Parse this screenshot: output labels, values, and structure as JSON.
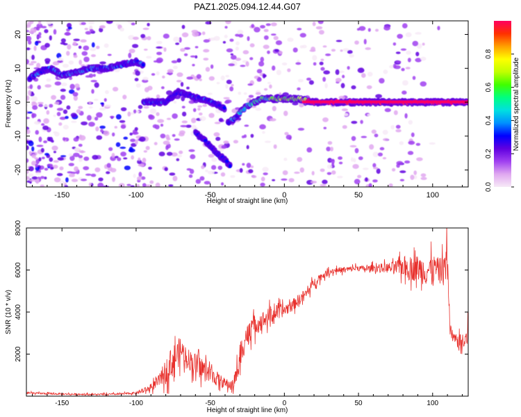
{
  "title": "PAZ1.2025.094.12.44.G07",
  "chart_data": [
    {
      "type": "heatmap",
      "xlabel": "Height of straight line (km)",
      "ylabel": "Frequency (Hz)",
      "xlim": [
        -174,
        124
      ],
      "ylim": [
        -25,
        24
      ],
      "xticks": [
        -150,
        -100,
        -50,
        0,
        50,
        100
      ],
      "yticks": [
        -20,
        -10,
        0,
        10,
        20
      ],
      "colorbar": {
        "label": "Normalized spectral amplitude",
        "range": [
          0,
          1
        ],
        "ticks": [
          "0.0",
          "0.2",
          "0.4",
          "0.6",
          "0.8"
        ],
        "colors": [
          "#f7eaf7",
          "#e0a8f0",
          "#a040f0",
          "#6000e0",
          "#0000ff",
          "#0090ff",
          "#00e0e0",
          "#00ff80",
          "#40ff00",
          "#c0ff00",
          "#ffff00",
          "#ffa000",
          "#ff3000",
          "#ff0060"
        ]
      },
      "ridges": [
        {
          "x": [
            -172,
            -165,
            -158,
            -150,
            -140,
            -130,
            -120,
            -110,
            -100,
            -95
          ],
          "y": [
            7,
            9,
            10,
            8,
            9,
            10,
            10,
            11,
            12,
            11
          ],
          "amplitude": 0.3
        },
        {
          "x": [
            -95,
            -88,
            -80,
            -72,
            -64,
            -56,
            -48,
            -40
          ],
          "y": [
            0,
            0,
            0,
            3,
            2,
            1,
            0,
            -2
          ],
          "amplitude": 0.25
        },
        {
          "x": [
            -38,
            -34,
            -30,
            -25,
            -20,
            -15,
            -10,
            -5,
            0,
            5,
            10,
            20,
            40,
            60,
            80,
            100,
            110,
            118,
            124
          ],
          "y": [
            -6,
            -5,
            -3,
            -1,
            0,
            1,
            1,
            1,
            1,
            1,
            1,
            0,
            0,
            0,
            0,
            0,
            0,
            0,
            0
          ],
          "amplitude": 0.75
        },
        {
          "x": [
            -60,
            -52,
            -46,
            -40,
            -36
          ],
          "y": [
            -9,
            -12,
            -15,
            -17,
            -19
          ],
          "amplitude": 0.2
        }
      ]
    },
    {
      "type": "line",
      "xlabel": "Height of straight line (km)",
      "ylabel": "SNR (10 * v/v)",
      "xlim": [
        -174,
        124
      ],
      "ylim": [
        0,
        8000
      ],
      "xticks": [
        -150,
        -100,
        -50,
        0,
        50,
        100
      ],
      "yticks": [
        2000,
        4000,
        6000,
        8000
      ],
      "color": "#e8302c",
      "series": [
        {
          "x": [
            -174,
            -150,
            -125,
            -110,
            -100,
            -95,
            -90,
            -85,
            -80,
            -75,
            -70,
            -65,
            -60,
            -55,
            -50,
            -45,
            -40,
            -35,
            -30,
            -28,
            -25,
            -20,
            -15,
            -10,
            -5,
            0,
            5,
            10,
            15,
            20,
            25,
            30,
            35,
            40,
            45,
            50,
            55,
            60,
            65,
            70,
            75,
            80,
            85,
            90,
            95,
            100,
            105,
            108,
            110,
            112,
            115,
            120,
            124
          ],
          "y": [
            150,
            100,
            80,
            100,
            150,
            250,
            400,
            700,
            1200,
            1700,
            2200,
            1800,
            1500,
            1300,
            1100,
            800,
            600,
            500,
            1500,
            2500,
            3000,
            3400,
            3600,
            3800,
            4000,
            4100,
            4300,
            4600,
            4900,
            5400,
            5700,
            5900,
            6000,
            6000,
            6050,
            6100,
            6050,
            6100,
            6100,
            6100,
            6100,
            6200,
            6050,
            6100,
            5950,
            6100,
            6000,
            6200,
            6000,
            3000,
            2700,
            2500,
            2800
          ],
          "noise": [
            60,
            60,
            50,
            60,
            80,
            150,
            250,
            400,
            800,
            1100,
            900,
            700,
            800,
            700,
            600,
            500,
            350,
            400,
            900,
            1100,
            800,
            700,
            600,
            600,
            500,
            450,
            400,
            400,
            350,
            300,
            250,
            200,
            200,
            200,
            200,
            200,
            200,
            250,
            300,
            350,
            500,
            700,
            800,
            900,
            1000,
            900,
            800,
            1100,
            1200,
            500,
            400,
            600,
            900
          ]
        }
      ]
    }
  ]
}
